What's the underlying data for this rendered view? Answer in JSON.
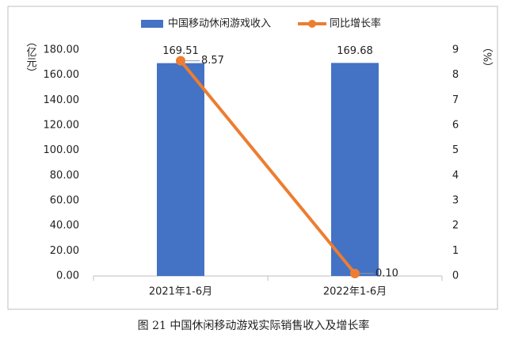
{
  "chart_data": {
    "type": "bar-line",
    "caption": "图 21 中国休闲移动游戏实际销售收入及增长率",
    "y_label": "（亿元）",
    "y2_label": "（%）",
    "categories": [
      "2021年1-6月",
      "2022年1-6月"
    ],
    "series": [
      {
        "name": "中国移动休闲游戏收入",
        "type": "bar",
        "color": "#4472c4",
        "values": [
          169.51,
          169.68
        ]
      },
      {
        "name": "同比增长率",
        "type": "line",
        "color": "#ed7d31",
        "axis": "y2",
        "values": [
          8.57,
          0.1
        ],
        "value_labels": [
          "8.57",
          "0.10"
        ]
      }
    ],
    "ylim": [
      0,
      180
    ],
    "yticks": [
      {
        "value": 0,
        "label": "0.00"
      },
      {
        "value": 20,
        "label": "20.00"
      },
      {
        "value": 40,
        "label": "40.00"
      },
      {
        "value": 60,
        "label": "60.00"
      },
      {
        "value": 80,
        "label": "80.00"
      },
      {
        "value": 100,
        "label": "100.00"
      },
      {
        "value": 120,
        "label": "120.00"
      },
      {
        "value": 140,
        "label": "140.00"
      },
      {
        "value": 160,
        "label": "160.00"
      },
      {
        "value": 180,
        "label": "180.00"
      }
    ],
    "y2lim": [
      0,
      9
    ],
    "y2ticks": [
      0,
      1,
      2,
      3,
      4,
      5,
      6,
      7,
      8,
      9
    ],
    "legend": "top",
    "grid": false
  }
}
